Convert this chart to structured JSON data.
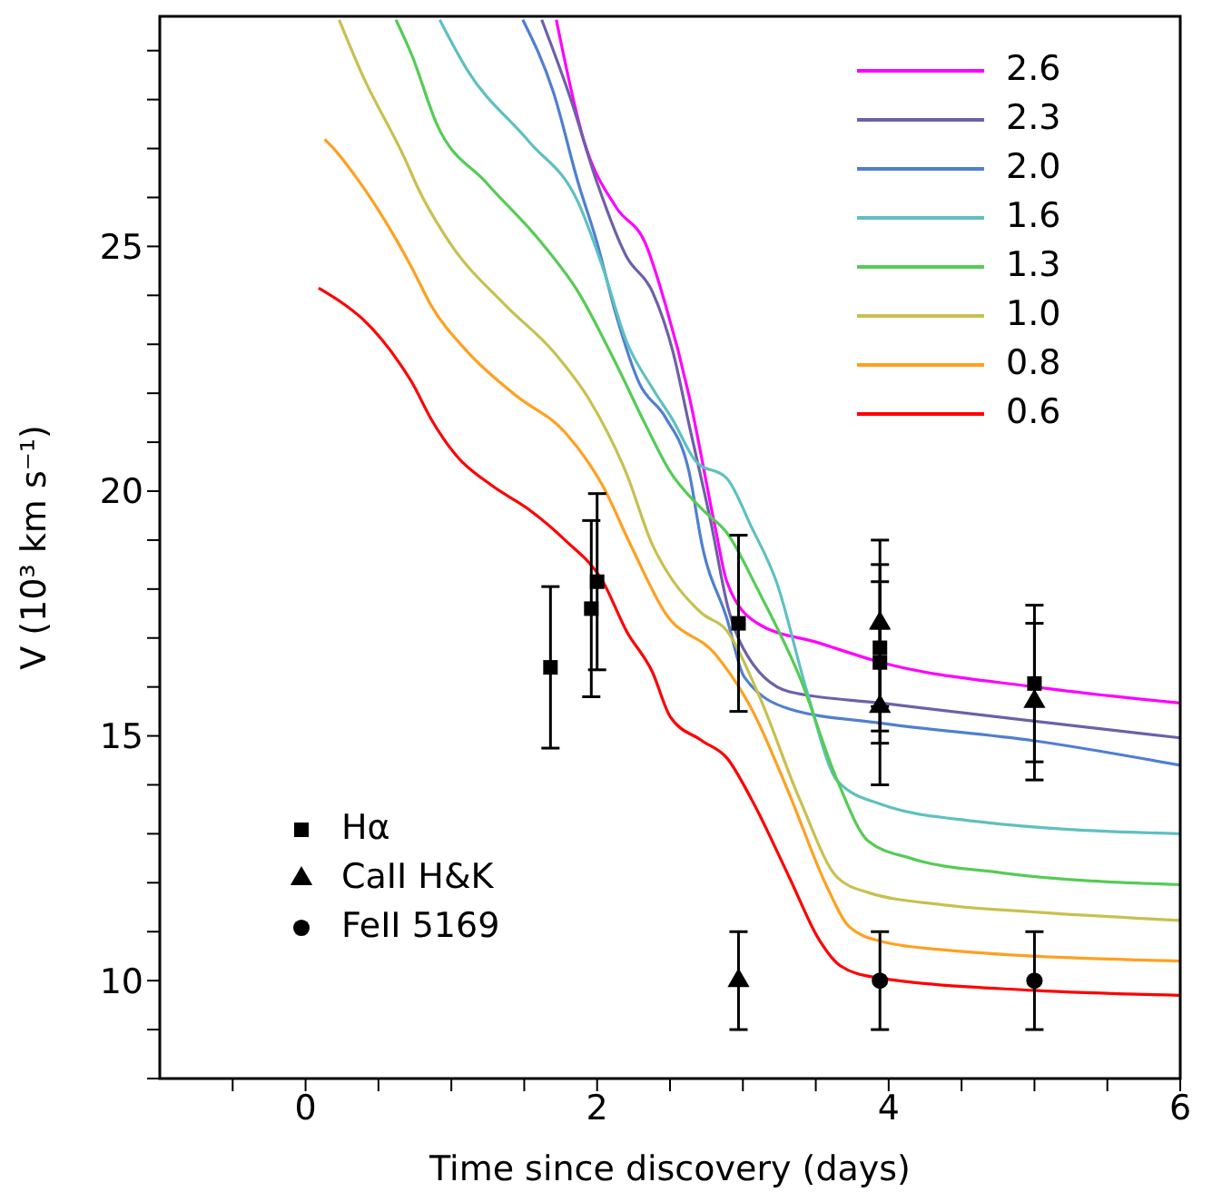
{
  "chart_data": {
    "type": "line",
    "xlabel": "Time since discovery (days)",
    "ylabel": "V (10³ km s⁻¹)",
    "xlim": [
      -1,
      6
    ],
    "ylim": [
      8,
      29.7
    ],
    "xticks": [
      {
        "value": -0.5,
        "label": null
      },
      0,
      {
        "value": 0.5,
        "label": null
      },
      {
        "value": 1,
        "label": null
      },
      {
        "value": 1.5,
        "label": null
      },
      2,
      {
        "value": 2.5,
        "label": null
      },
      {
        "value": 3,
        "label": null
      },
      {
        "value": 3.5,
        "label": null
      },
      4,
      {
        "value": 4.5,
        "label": null
      },
      {
        "value": 5,
        "label": null
      },
      {
        "value": 5.5,
        "label": null
      },
      6
    ],
    "yticks": [
      {
        "value": 8,
        "label": null
      },
      {
        "value": 9,
        "label": null
      },
      10,
      {
        "value": 11,
        "label": null
      },
      {
        "value": 12,
        "label": null
      },
      {
        "value": 13,
        "label": null
      },
      {
        "value": 14,
        "label": null
      },
      15,
      {
        "value": 16,
        "label": null
      },
      {
        "value": 17,
        "label": null
      },
      {
        "value": 18,
        "label": null
      },
      {
        "value": 19,
        "label": null
      },
      20,
      {
        "value": 21,
        "label": null
      },
      {
        "value": 22,
        "label": null
      },
      {
        "value": 23,
        "label": null
      },
      {
        "value": 24,
        "label": null
      },
      25,
      {
        "value": 26,
        "label": null
      },
      {
        "value": 27,
        "label": null
      },
      {
        "value": 28,
        "label": null
      },
      {
        "value": 29,
        "label": null
      }
    ],
    "grid": false,
    "legend": "top right",
    "series": [
      {
        "name": "2.6",
        "color": "#ff00ff",
        "type": "line",
        "x": [
          1.72,
          1.91,
          2.13,
          2.33,
          2.47,
          2.63,
          2.81,
          2.89,
          3.1,
          3.52,
          3.95,
          5.0,
          6.0
        ],
        "values": [
          29.63,
          27.15,
          25.8,
          25.07,
          23.8,
          21.96,
          19.26,
          18.15,
          17.3,
          16.9,
          16.5,
          16.0,
          15.67
        ]
      },
      {
        "name": "2.3",
        "color": "#6f5fa8",
        "type": "line",
        "x": [
          1.62,
          1.82,
          2.0,
          2.2,
          2.38,
          2.52,
          2.63,
          2.78,
          2.9,
          3.0,
          3.32,
          3.95,
          5.0,
          6.0
        ],
        "values": [
          29.63,
          28.0,
          26.3,
          24.8,
          24.07,
          22.85,
          21.37,
          19.37,
          17.6,
          16.8,
          15.9,
          15.67,
          15.3,
          14.96
        ]
      },
      {
        "name": "2.0",
        "color": "#4f7fd0",
        "type": "line",
        "x": [
          1.49,
          1.7,
          1.87,
          2.0,
          2.13,
          2.29,
          2.47,
          2.63,
          2.72,
          2.89,
          3.01,
          3.32,
          3.95,
          5.0,
          6.0
        ],
        "values": [
          29.63,
          28.15,
          26.3,
          25.07,
          23.6,
          22.2,
          21.5,
          20.4,
          18.9,
          17.4,
          16.2,
          15.55,
          15.26,
          14.9,
          14.4
        ]
      },
      {
        "name": "1.6",
        "color": "#5fc0c0",
        "type": "line",
        "x": [
          0.92,
          1.11,
          1.53,
          1.87,
          2.04,
          2.2,
          2.38,
          2.52,
          2.68,
          2.89,
          3.06,
          3.23,
          3.44,
          3.65,
          3.95,
          4.58,
          6.0
        ],
        "values": [
          29.63,
          28.6,
          27.15,
          25.9,
          24.56,
          23.07,
          22.1,
          21.45,
          20.6,
          20.26,
          19.26,
          18.15,
          15.9,
          14.07,
          13.6,
          13.26,
          13.0
        ]
      },
      {
        "name": "1.3",
        "color": "#55cc55",
        "type": "line",
        "x": [
          0.62,
          0.73,
          0.9,
          1.24,
          1.62,
          1.87,
          2.13,
          2.33,
          2.5,
          2.72,
          2.89,
          3.1,
          3.39,
          3.65,
          3.86,
          4.15,
          4.78,
          6.0
        ],
        "values": [
          29.63,
          28.9,
          27.5,
          26.3,
          25.07,
          24.07,
          22.6,
          21.37,
          20.4,
          19.63,
          19.15,
          18.0,
          16.2,
          14.07,
          12.85,
          12.5,
          12.2,
          11.96
        ]
      },
      {
        "name": "1.0",
        "color": "#c8c050",
        "type": "line",
        "x": [
          0.23,
          0.39,
          0.68,
          0.77,
          0.99,
          1.37,
          1.7,
          1.95,
          2.2,
          2.38,
          2.47,
          2.72,
          2.89,
          3.1,
          3.39,
          3.65,
          3.86,
          4.37,
          5.0,
          6.0
        ],
        "values": [
          29.63,
          28.5,
          26.8,
          26.2,
          25.07,
          23.8,
          22.85,
          21.85,
          20.37,
          18.9,
          18.4,
          17.5,
          17.15,
          15.9,
          13.7,
          12.1,
          11.8,
          11.55,
          11.4,
          11.23
        ]
      },
      {
        "name": "0.8",
        "color": "#ffa020",
        "type": "line",
        "x": [
          0.13,
          0.18,
          0.35,
          0.61,
          0.73,
          0.86,
          1.11,
          1.44,
          1.78,
          2.04,
          2.23,
          2.47,
          2.81,
          3.06,
          3.32,
          3.57,
          3.73,
          3.95,
          4.37,
          5.0,
          6.0
        ],
        "values": [
          27.19,
          27.04,
          26.4,
          25.2,
          24.56,
          23.8,
          22.85,
          21.96,
          21.2,
          20.1,
          18.9,
          17.5,
          16.67,
          15.55,
          13.8,
          11.96,
          11.1,
          10.8,
          10.63,
          10.5,
          10.4
        ]
      },
      {
        "name": "0.6",
        "color": "#ff0000",
        "type": "line",
        "x": [
          0.09,
          0.23,
          0.39,
          0.65,
          0.73,
          0.86,
          1.03,
          1.28,
          1.53,
          1.78,
          2.04,
          2.2,
          2.38,
          2.5,
          2.72,
          2.89,
          3.06,
          3.32,
          3.52,
          3.67,
          3.9,
          5.0,
          6.0
        ],
        "values": [
          24.15,
          23.89,
          23.52,
          22.59,
          22.22,
          21.48,
          20.74,
          20.11,
          19.63,
          19.0,
          18.15,
          17.15,
          16.3,
          15.4,
          14.9,
          14.55,
          13.7,
          12.1,
          10.85,
          10.3,
          10.07,
          9.8,
          9.7
        ]
      },
      {
        "name": "Hα",
        "color": "#000000",
        "type": "scatter",
        "marker": "square",
        "x": [
          1.68,
          1.96,
          2.0,
          2.97,
          3.94,
          3.94,
          5.0
        ],
        "values": [
          16.4,
          17.6,
          18.15,
          17.3,
          16.8,
          16.5,
          16.07
        ],
        "errors": [
          1.65,
          1.8,
          1.8,
          1.8,
          1.7,
          1.65,
          1.6
        ]
      },
      {
        "name": "CaII H&K",
        "color": "#000000",
        "type": "scatter",
        "marker": "triangle",
        "x": [
          2.97,
          3.94,
          3.94,
          5.0
        ],
        "values": [
          10.0,
          17.3,
          15.6,
          15.7
        ],
        "errors": [
          1.0,
          1.7,
          1.6,
          1.6
        ]
      },
      {
        "name": "FeII 5169",
        "color": "#000000",
        "type": "scatter",
        "marker": "circle",
        "x": [
          3.94,
          5.0
        ],
        "values": [
          10.0,
          10.0
        ],
        "errors": [
          1.0,
          1.0
        ]
      }
    ]
  }
}
